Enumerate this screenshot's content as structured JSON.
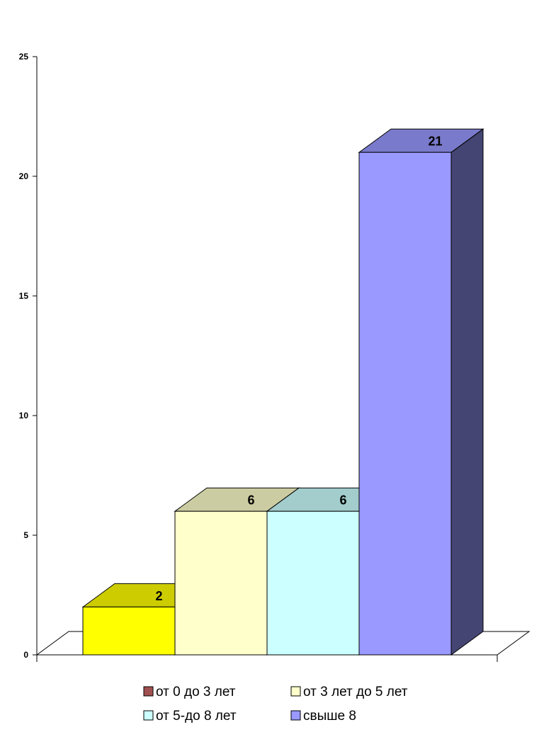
{
  "chart_data": {
    "type": "bar",
    "style": "3d-column",
    "categories": [
      "от 0 до 3 лет",
      "от 3 лет до 5 лет",
      "от 5-до 8 лет",
      "свыше 8"
    ],
    "bar_values": [
      2,
      6,
      6,
      21
    ],
    "bar_colors": [
      "#ffff00",
      "#ffffcc",
      "#ccffff",
      "#9999ff"
    ],
    "ylim": [
      0,
      25
    ],
    "yticks": [
      0,
      5,
      10,
      15,
      20,
      25
    ],
    "grid": false,
    "legend": {
      "placement": "bottom",
      "entries": [
        {
          "label": "от 0 до 3 лет",
          "color": "#a05050"
        },
        {
          "label": "от 3 лет до 5 лет",
          "color": "#ffffcc"
        },
        {
          "label": "от 5-до 8 лет",
          "color": "#ccffff"
        },
        {
          "label": "свыше 8",
          "color": "#9999ff"
        }
      ]
    }
  }
}
